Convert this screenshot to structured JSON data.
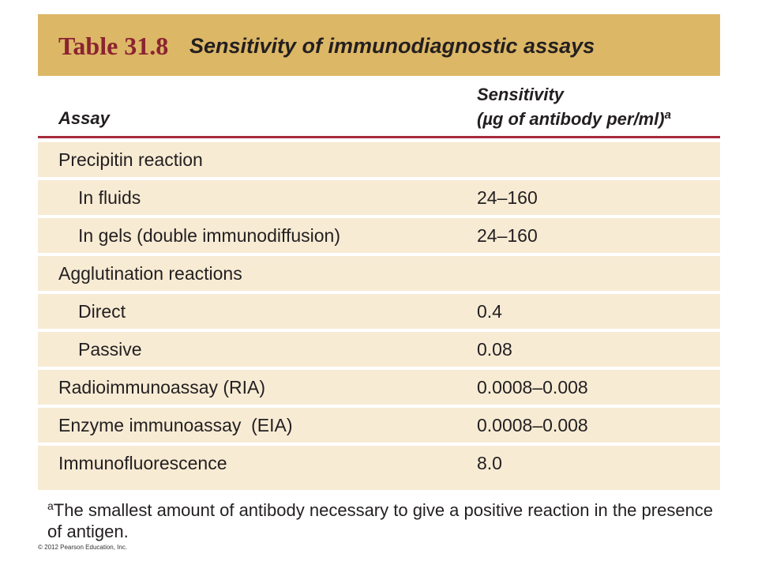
{
  "title": {
    "number": "Table 31.8",
    "text": "Sensitivity of immunodiagnostic assays"
  },
  "headers": {
    "assay": "Assay",
    "sensitivity_line1": "Sensitivity",
    "sensitivity_line2": "(µg of antibody per/ml)",
    "sensitivity_sup": "a"
  },
  "rows": [
    {
      "assay": "Precipitin reaction",
      "value": ""
    },
    {
      "assay": "In fluids",
      "value": "24–160"
    },
    {
      "assay": "In gels (double immunodiffusion)",
      "value": "24–160"
    },
    {
      "assay": "Agglutination reactions",
      "value": ""
    },
    {
      "assay": "Direct",
      "value": "0.4"
    },
    {
      "assay": "Passive",
      "value": "0.08"
    },
    {
      "assay": "Radioimmunoassay (RIA)",
      "value": "0.0008–0.008"
    },
    {
      "assay": "Enzyme immunoassay  (EIA)",
      "value": "0.0008–0.008"
    },
    {
      "assay": "Immunofluorescence",
      "value": "8.0"
    }
  ],
  "footnote": {
    "mark": "a",
    "text": "The smallest amount of antibody necessary to give a positive reaction in the presence of antigen."
  },
  "copyright": "© 2012 Pearson Education, Inc.",
  "colors": {
    "title_bar": "#dcb766",
    "title_number": "#8b2331",
    "row_fill": "#f7ebd4",
    "header_rule": "#a62b3c"
  }
}
